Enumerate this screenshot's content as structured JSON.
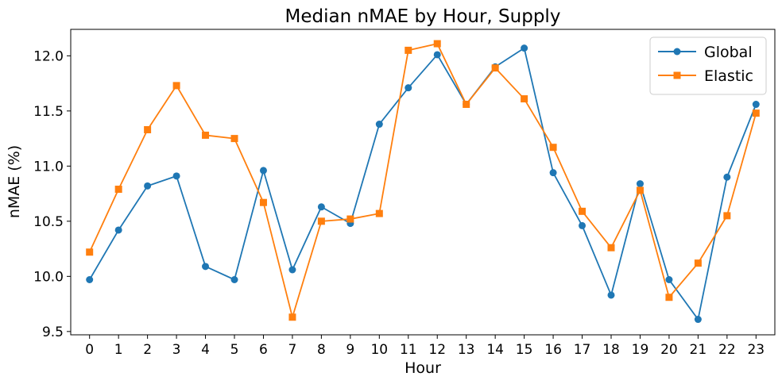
{
  "chart_data": {
    "type": "line",
    "title": "Median nMAE by Hour, Supply",
    "xlabel": "Hour",
    "ylabel": "nMAE (%)",
    "x": [
      0,
      1,
      2,
      3,
      4,
      5,
      6,
      7,
      8,
      9,
      10,
      11,
      12,
      13,
      14,
      15,
      16,
      17,
      18,
      19,
      20,
      21,
      22,
      23
    ],
    "xticks": [
      "0",
      "1",
      "2",
      "3",
      "4",
      "5",
      "6",
      "7",
      "8",
      "9",
      "10",
      "11",
      "12",
      "13",
      "14",
      "15",
      "16",
      "17",
      "18",
      "19",
      "20",
      "21",
      "22",
      "23"
    ],
    "yticks": [
      "9.5",
      "10.0",
      "10.5",
      "11.0",
      "11.5",
      "12.0"
    ],
    "ytick_values": [
      9.5,
      10.0,
      10.5,
      11.0,
      11.5,
      12.0
    ],
    "ylim": [
      9.47,
      12.24
    ],
    "xlim": [
      -0.65,
      23.65
    ],
    "grid": false,
    "legend_position": "top-right",
    "series": [
      {
        "name": "Global",
        "color": "#1f77b4",
        "marker": "circle",
        "values": [
          9.97,
          10.42,
          10.82,
          10.91,
          10.09,
          9.97,
          10.96,
          10.06,
          10.63,
          10.48,
          11.38,
          11.71,
          12.01,
          11.56,
          11.9,
          12.07,
          10.94,
          10.46,
          9.83,
          10.84,
          9.97,
          9.61,
          10.9,
          11.56
        ]
      },
      {
        "name": "Elastic",
        "color": "#ff7f0e",
        "marker": "square",
        "values": [
          10.22,
          10.79,
          11.33,
          11.73,
          11.28,
          11.25,
          10.67,
          9.63,
          10.5,
          10.52,
          10.57,
          12.05,
          12.11,
          11.56,
          11.89,
          11.61,
          11.17,
          10.59,
          10.26,
          10.78,
          9.81,
          10.12,
          10.55,
          11.48
        ]
      }
    ]
  }
}
